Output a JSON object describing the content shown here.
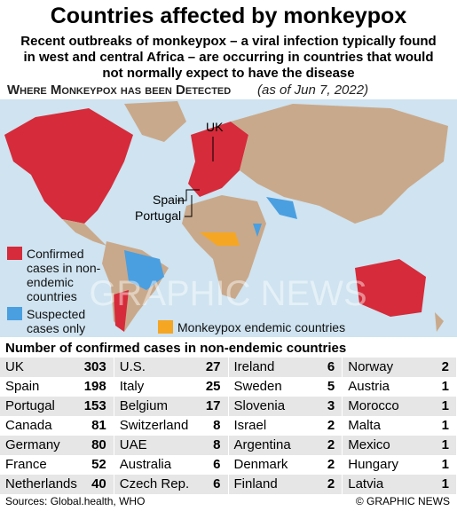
{
  "title": "Countries affected by monkeypox",
  "subtitle": "Recent outbreaks of monkeypox – a viral infection typically found in west and central Africa – are occurring in countries that would not normally expect to have the disease",
  "map": {
    "heading": "Where Monkeypox has been Detected",
    "date_note": "(as of Jun 7, 2022)",
    "labels": [
      "UK",
      "Spain",
      "Portugal"
    ],
    "legend": [
      "Confirmed cases in non-endemic countries",
      "Suspected cases only",
      "Monkeypox endemic countries"
    ],
    "watermark": "GRAPHIC NEWS"
  },
  "table": {
    "title": "Number of confirmed cases in non-endemic countries",
    "columns": [
      [
        [
          "UK",
          303
        ],
        [
          "Spain",
          198
        ],
        [
          "Portugal",
          153
        ],
        [
          "Canada",
          81
        ],
        [
          "Germany",
          80
        ],
        [
          "France",
          52
        ],
        [
          "Netherlands",
          40
        ]
      ],
      [
        [
          "U.S.",
          27
        ],
        [
          "Italy",
          25
        ],
        [
          "Belgium",
          17
        ],
        [
          "Switzerland",
          8
        ],
        [
          "UAE",
          8
        ],
        [
          "Australia",
          6
        ],
        [
          "Czech Rep.",
          6
        ]
      ],
      [
        [
          "Ireland",
          6
        ],
        [
          "Sweden",
          5
        ],
        [
          "Slovenia",
          3
        ],
        [
          "Israel",
          2
        ],
        [
          "Argentina",
          2
        ],
        [
          "Denmark",
          2
        ],
        [
          "Finland",
          2
        ]
      ],
      [
        [
          "Norway",
          2
        ],
        [
          "Austria",
          1
        ],
        [
          "Morocco",
          1
        ],
        [
          "Malta",
          1
        ],
        [
          "Mexico",
          1
        ],
        [
          "Hungary",
          1
        ],
        [
          "Latvia",
          1
        ]
      ]
    ]
  },
  "footer": {
    "source": "Sources: Global.health, WHO",
    "credit": "© GRAPHIC NEWS"
  }
}
